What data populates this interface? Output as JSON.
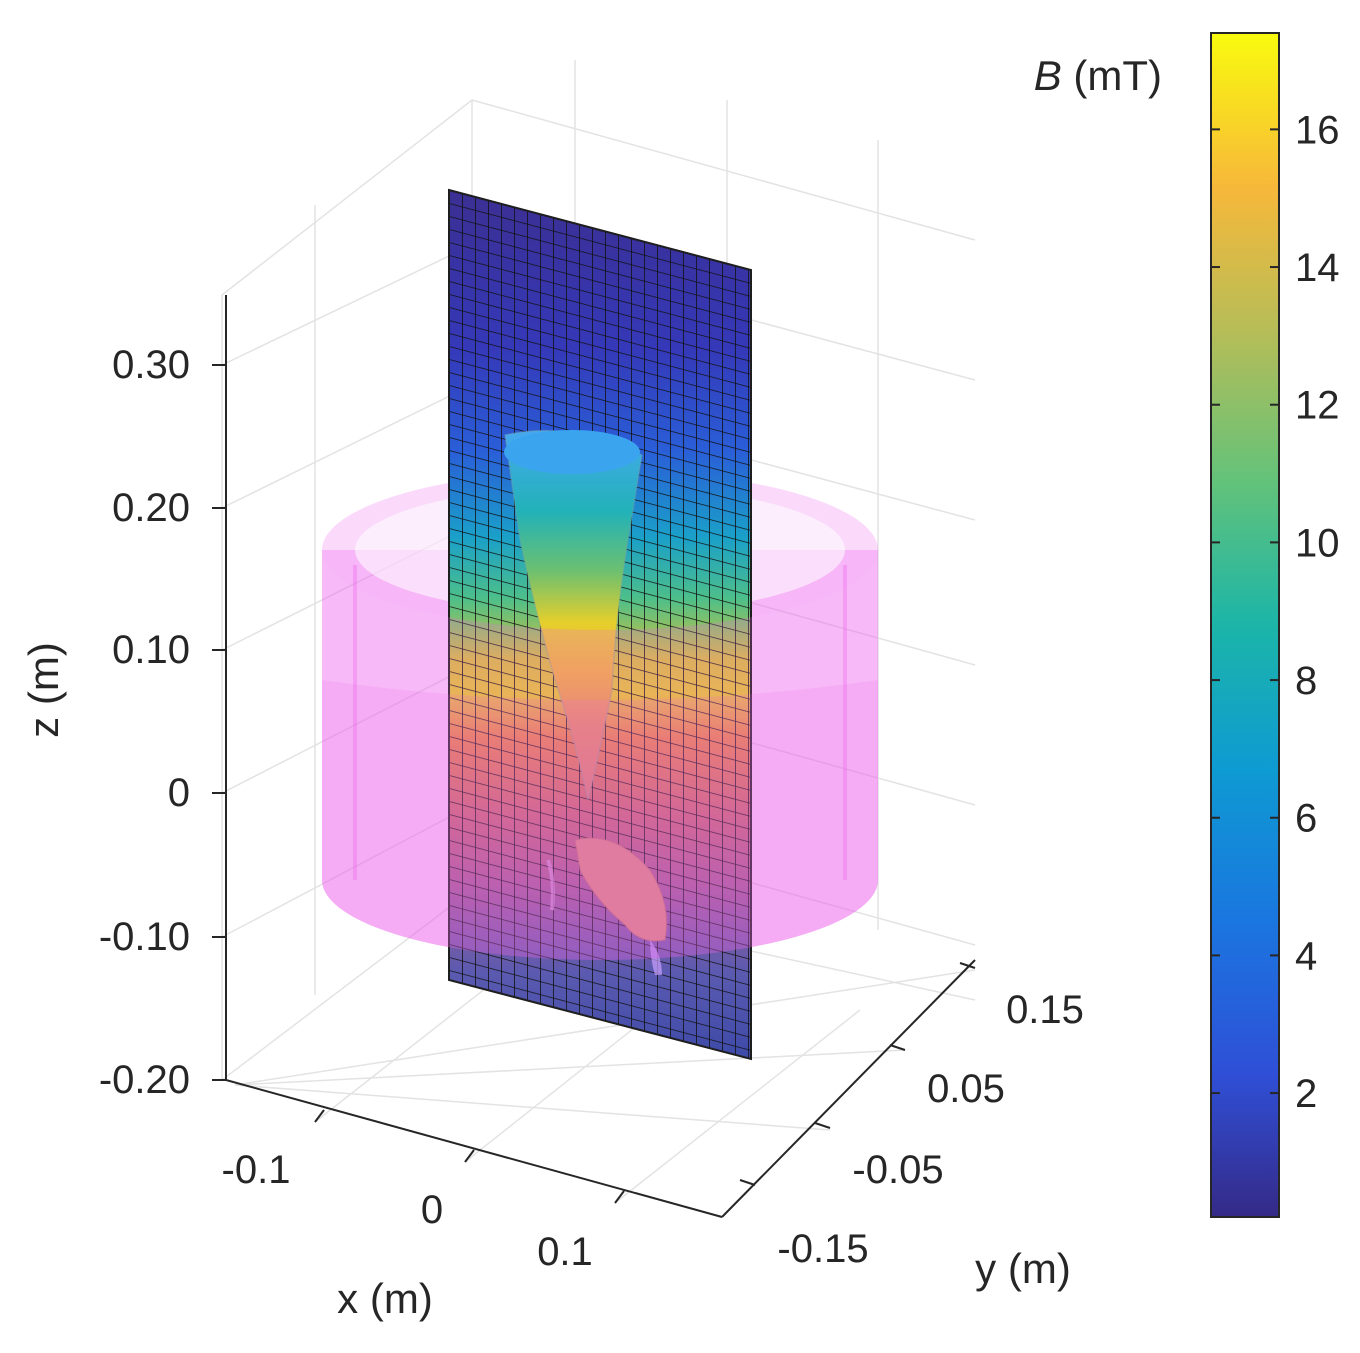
{
  "chart_data": {
    "type": "3d-surface",
    "axes": {
      "x": {
        "label": "x (m)",
        "ticks": [
          "-0.1",
          "0",
          "0.1"
        ]
      },
      "y": {
        "label": "y (m)",
        "ticks": [
          "-0.15",
          "-0.05",
          "0.05",
          "0.15"
        ]
      },
      "z": {
        "label": "z (m)",
        "ticks": [
          "-0.20",
          "-0.10",
          "0",
          "0.10",
          "0.20",
          "0.30"
        ]
      }
    },
    "colorbar": {
      "title_symbol": "B",
      "title_unit": " (mT)",
      "range": [
        0.2,
        17.4
      ],
      "ticks": [
        "2",
        "4",
        "6",
        "8",
        "10",
        "12",
        "14",
        "16"
      ],
      "colormap": "parula"
    },
    "objects": [
      {
        "kind": "translucent cylinder",
        "color": "#ee66ee"
      },
      {
        "kind": "slice plane (field magnitude, gridded)"
      },
      {
        "kind": "isosurface",
        "color_range_mT": [
          6,
          16
        ]
      }
    ],
    "grid": true
  }
}
